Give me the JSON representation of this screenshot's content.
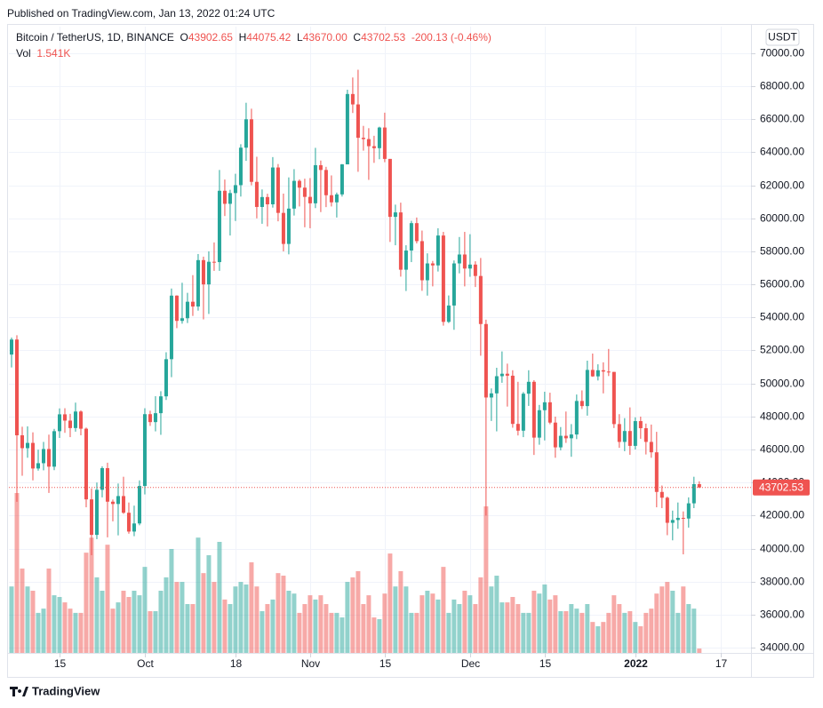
{
  "published": "Published on TradingView.com, Jan 13, 2022 01:24 UTC",
  "brand": "TradingView",
  "chart_data": {
    "type": "candlestick",
    "symbol": "Bitcoin / TetherUS, 1D, BINANCE",
    "legend": {
      "open_key": "O",
      "open": "43902.65",
      "high_key": "H",
      "high": "44075.42",
      "low_key": "L",
      "low": "43670.00",
      "close_key": "C",
      "close": "43702.53",
      "change": "-200.13 (-0.46%)"
    },
    "volume_key": "Vol",
    "volume_label": "1.541K",
    "currency": "USDT",
    "last_price_label": "43702.53",
    "up_color": "#26a69a",
    "down_color": "#ef5350",
    "open": [
      51750,
      52660,
      46860,
      46080,
      46400,
      44850,
      45170,
      46030,
      44960,
      47110,
      48130,
      47750,
      47300,
      48300,
      47260,
      42980,
      40830,
      43560,
      44870,
      42840,
      42700,
      43180,
      42170,
      41030,
      41520,
      43790,
      48140,
      47660,
      48200,
      49220,
      51470,
      55320,
      53790,
      53950,
      54950,
      54660,
      57470,
      56000,
      57370,
      57350,
      61670,
      60880,
      61530,
      62010,
      64280,
      66000,
      62210,
      60690,
      61290,
      60850,
      63080,
      60330,
      58450,
      60590,
      62270,
      61860,
      61300,
      60910,
      63220,
      62930,
      61400,
      60970,
      61450,
      63270,
      67530,
      66900,
      64880,
      64800,
      64370,
      64250,
      65500,
      63600,
      60090,
      60360,
      56890,
      58050,
      59710,
      58620,
      56250,
      57270,
      57150,
      58960,
      53730,
      54720,
      57270,
      57810,
      56960,
      57200,
      56510,
      53600,
      49150,
      49400,
      50440,
      50590,
      50470,
      47550,
      47140,
      49380,
      50100,
      46720,
      48380,
      48860,
      47630,
      46130,
      46830,
      46680,
      46910,
      48940,
      48630,
      50820,
      50430,
      50800,
      50720,
      50700,
      47540,
      46460,
      47120,
      46220,
      47720,
      47290,
      46460,
      45830,
      43430,
      43080,
      41560,
      41730,
      41860,
      41820,
      42740,
      43902.65
    ],
    "high": [
      52780,
      52920,
      47380,
      47400,
      47040,
      45990,
      46460,
      46900,
      47250,
      48490,
      48500,
      48160,
      48840,
      48370,
      47330,
      43640,
      44000,
      44980,
      45200,
      42970,
      43940,
      44350,
      42790,
      42600,
      44130,
      48500,
      48350,
      49230,
      49530,
      51890,
      55750,
      55340,
      56100,
      55490,
      56560,
      57840,
      57680,
      58000,
      58540,
      62930,
      62350,
      61730,
      62700,
      64490,
      67000,
      66640,
      63730,
      61750,
      61490,
      63710,
      63290,
      61500,
      62480,
      62980,
      62360,
      62400,
      62440,
      64270,
      63500,
      63120,
      62600,
      61560,
      63290,
      67790,
      68530,
      69000,
      65600,
      65460,
      65000,
      65550,
      66400,
      63600,
      60830,
      60950,
      58370,
      59850,
      60050,
      59260,
      57880,
      57420,
      59400,
      59180,
      55330,
      57450,
      58870,
      59180,
      59040,
      57400,
      57600,
      53860,
      49700,
      50950,
      51940,
      51200,
      50800,
      50100,
      49480,
      50800,
      50200,
      48700,
      49500,
      49440,
      47990,
      47360,
      48300,
      47540,
      49330,
      49580,
      51380,
      51810,
      51160,
      51280,
      52090,
      50700,
      48140,
      47900,
      48550,
      47950,
      47990,
      47570,
      47510,
      47070,
      43820,
      43150,
      42300,
      42790,
      42250,
      43100,
      44350,
      44075.42
    ],
    "low": [
      50970,
      42830,
      44410,
      45500,
      44130,
      44720,
      44740,
      43370,
      44750,
      46700,
      47010,
      46750,
      47080,
      46860,
      42500,
      39600,
      40570,
      43100,
      40680,
      41650,
      40800,
      42100,
      40900,
      40750,
      41410,
      43280,
      47430,
      47100,
      46890,
      49000,
      50380,
      53350,
      53620,
      53660,
      54090,
      54410,
      53880,
      54210,
      56820,
      56820,
      60140,
      58960,
      59840,
      61320,
      63480,
      62000,
      60000,
      59670,
      59510,
      60650,
      59820,
      58000,
      57820,
      60170,
      60720,
      59460,
      59400,
      60620,
      60380,
      60680,
      60720,
      60050,
      61320,
      63270,
      66380,
      62820,
      64100,
      62330,
      63360,
      63580,
      63400,
      58570,
      58370,
      56470,
      55600,
      57350,
      58480,
      55610,
      55320,
      55880,
      56780,
      53500,
      53660,
      53250,
      56670,
      55880,
      56460,
      55840,
      51680,
      42000,
      47730,
      47100,
      50040,
      48600,
      47320,
      46850,
      46750,
      48640,
      45670,
      46290,
      46550,
      47530,
      45500,
      45950,
      46400,
      45560,
      46630,
      48450,
      48050,
      50400,
      50180,
      49400,
      50450,
      47300,
      46100,
      45900,
      45680,
      46000,
      46650,
      45700,
      45500,
      42500,
      42450,
      40810,
      40500,
      41200,
      39650,
      41270,
      42450,
      43670
    ],
    "close": [
      52660,
      46860,
      46080,
      46400,
      44850,
      45170,
      46030,
      44960,
      47110,
      48130,
      47750,
      47300,
      48300,
      47260,
      42980,
      40830,
      43560,
      44870,
      42840,
      42700,
      43180,
      42170,
      41030,
      41520,
      43790,
      48140,
      47660,
      48200,
      49220,
      51470,
      55320,
      53790,
      53950,
      54950,
      54660,
      57470,
      56000,
      57370,
      57350,
      61670,
      60880,
      61530,
      62010,
      64280,
      66000,
      62210,
      60690,
      61290,
      60850,
      63080,
      60330,
      58450,
      60590,
      62270,
      61860,
      61300,
      60910,
      63220,
      62930,
      61400,
      60970,
      61450,
      63270,
      67530,
      66900,
      64880,
      64800,
      64370,
      64250,
      65500,
      63600,
      60090,
      60360,
      56890,
      58050,
      59710,
      58620,
      56250,
      57270,
      57150,
      58960,
      53730,
      54720,
      57270,
      57810,
      56960,
      57200,
      56510,
      53600,
      49150,
      49400,
      50440,
      50590,
      50470,
      47550,
      47140,
      49380,
      50100,
      46720,
      48380,
      48860,
      47630,
      46130,
      46830,
      46680,
      46910,
      48940,
      48630,
      50820,
      50430,
      50800,
      50720,
      50700,
      47540,
      46460,
      47120,
      46220,
      47720,
      47290,
      46460,
      45830,
      43430,
      43080,
      41560,
      41730,
      41860,
      41820,
      42740,
      43902.65,
      43702.53
    ],
    "volume": [
      23.4,
      56.3,
      29.7,
      23.4,
      21.9,
      14.1,
      15.6,
      29.7,
      20.3,
      19.7,
      17.8,
      15.6,
      14.1,
      14.1,
      35.3,
      40.6,
      26.6,
      21.9,
      38.1,
      15.6,
      17.8,
      21.9,
      19.7,
      21.9,
      20.3,
      30.3,
      14.7,
      14.7,
      21.9,
      26.6,
      36.6,
      25.0,
      25.0,
      17.2,
      17.2,
      40.6,
      28.1,
      34.4,
      25.0,
      39.1,
      18.8,
      17.2,
      23.4,
      25.0,
      24.1,
      31.9,
      23.4,
      14.7,
      17.2,
      18.8,
      28.1,
      27.2,
      21.9,
      20.9,
      14.1,
      17.2,
      20.3,
      18.8,
      20.3,
      17.2,
      14.1,
      14.1,
      12.5,
      25.0,
      26.6,
      28.8,
      17.2,
      20.3,
      12.5,
      11.9,
      20.9,
      35.0,
      23.4,
      28.8,
      23.4,
      14.1,
      14.1,
      20.3,
      21.9,
      20.9,
      18.8,
      30.3,
      14.1,
      18.8,
      17.2,
      21.9,
      20.3,
      17.2,
      26.6,
      51.6,
      23.4,
      27.2,
      17.8,
      17.8,
      19.7,
      17.2,
      14.1,
      14.1,
      21.9,
      20.9,
      24.1,
      18.8,
      20.3,
      14.7,
      14.7,
      17.2,
      15.6,
      14.1,
      17.2,
      10.9,
      9.4,
      10.9,
      14.1,
      20.3,
      17.2,
      14.1,
      14.7,
      10.9,
      9.4,
      14.1,
      15.6,
      20.9,
      23.4,
      25.0,
      21.9,
      14.1,
      23.4,
      17.2,
      15.6,
      1.541
    ],
    "ylim": [
      33680,
      71610
    ],
    "yticks": [
      {
        "value": 34000,
        "label": "34000.00"
      },
      {
        "value": 36000,
        "label": "36000.00"
      },
      {
        "value": 38000,
        "label": "38000.00"
      },
      {
        "value": 40000,
        "label": "40000.00"
      },
      {
        "value": 42000,
        "label": "42000.00"
      },
      {
        "value": 44000,
        "label": "44000.00"
      },
      {
        "value": 46000,
        "label": "46000.00"
      },
      {
        "value": 48000,
        "label": "48000.00"
      },
      {
        "value": 50000,
        "label": "50000.00"
      },
      {
        "value": 52000,
        "label": "52000.00"
      },
      {
        "value": 54000,
        "label": "54000.00"
      },
      {
        "value": 56000,
        "label": "56000.00"
      },
      {
        "value": 58000,
        "label": "58000.00"
      },
      {
        "value": 60000,
        "label": "60000.00"
      },
      {
        "value": 62000,
        "label": "62000.00"
      },
      {
        "value": 64000,
        "label": "64000.00"
      },
      {
        "value": 66000,
        "label": "66000.00"
      },
      {
        "value": 68000,
        "label": "68000.00"
      },
      {
        "value": 70000,
        "label": "70000.00"
      }
    ],
    "xlim": [
      -0.5,
      138.7
    ],
    "xticks": [
      {
        "value": 9,
        "label": "15"
      },
      {
        "value": 25,
        "label": "Oct"
      },
      {
        "value": 42,
        "label": "18"
      },
      {
        "value": 56,
        "label": "Nov"
      },
      {
        "value": 70,
        "label": "15"
      },
      {
        "value": 86,
        "label": "Dec"
      },
      {
        "value": 100,
        "label": "15"
      },
      {
        "value": 117,
        "label": "2022"
      },
      {
        "value": 133,
        "label": "17"
      }
    ],
    "grid": true
  }
}
